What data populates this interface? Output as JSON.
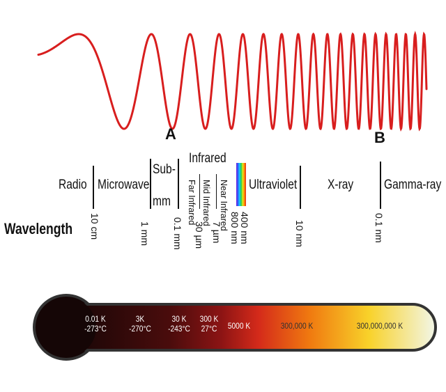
{
  "wave": {
    "color": "#d81e1e"
  },
  "markers": {
    "a": "A",
    "b": "B"
  },
  "bands": {
    "radio": "Radio",
    "microwave": "Microwave",
    "sub_mm_1": "Sub-",
    "sub_mm_2": "mm",
    "infrared": "Infrared",
    "far_ir": "Far Infrared",
    "mid_ir": "Mid Infrared",
    "near_ir": "Near Infrared",
    "ultraviolet": "Ultraviolet",
    "xray": "X-ray",
    "gamma": "Gamma-ray"
  },
  "wavelength_label": "Wavelength",
  "wavelengths": {
    "w10cm": "10 cm",
    "w1mm": "1 mm",
    "w01mm": "0.1 mm",
    "w30um": "30 µm",
    "w7um": "7 µm",
    "w800nm": "800 nm",
    "w400nm": "400 nm",
    "w10nm": "10 nm",
    "w01nm": "0.1 nm"
  },
  "temperatures": [
    {
      "k": "0.01 K",
      "c": "-273°C"
    },
    {
      "k": "3K",
      "c": "-270°C"
    },
    {
      "k": "30 K",
      "c": "-243°C"
    },
    {
      "k": "300 K",
      "c": "27°C"
    },
    {
      "k": "5000 K",
      "c": ""
    },
    {
      "k": "300,000 K",
      "c": ""
    },
    {
      "k": "300,000,000 K",
      "c": ""
    }
  ],
  "thermometer_colors": [
    "#150606",
    "#4a0c0c",
    "#8c1414",
    "#d42a1a",
    "#f07a10",
    "#f8d22a",
    "#f2f6e8"
  ]
}
